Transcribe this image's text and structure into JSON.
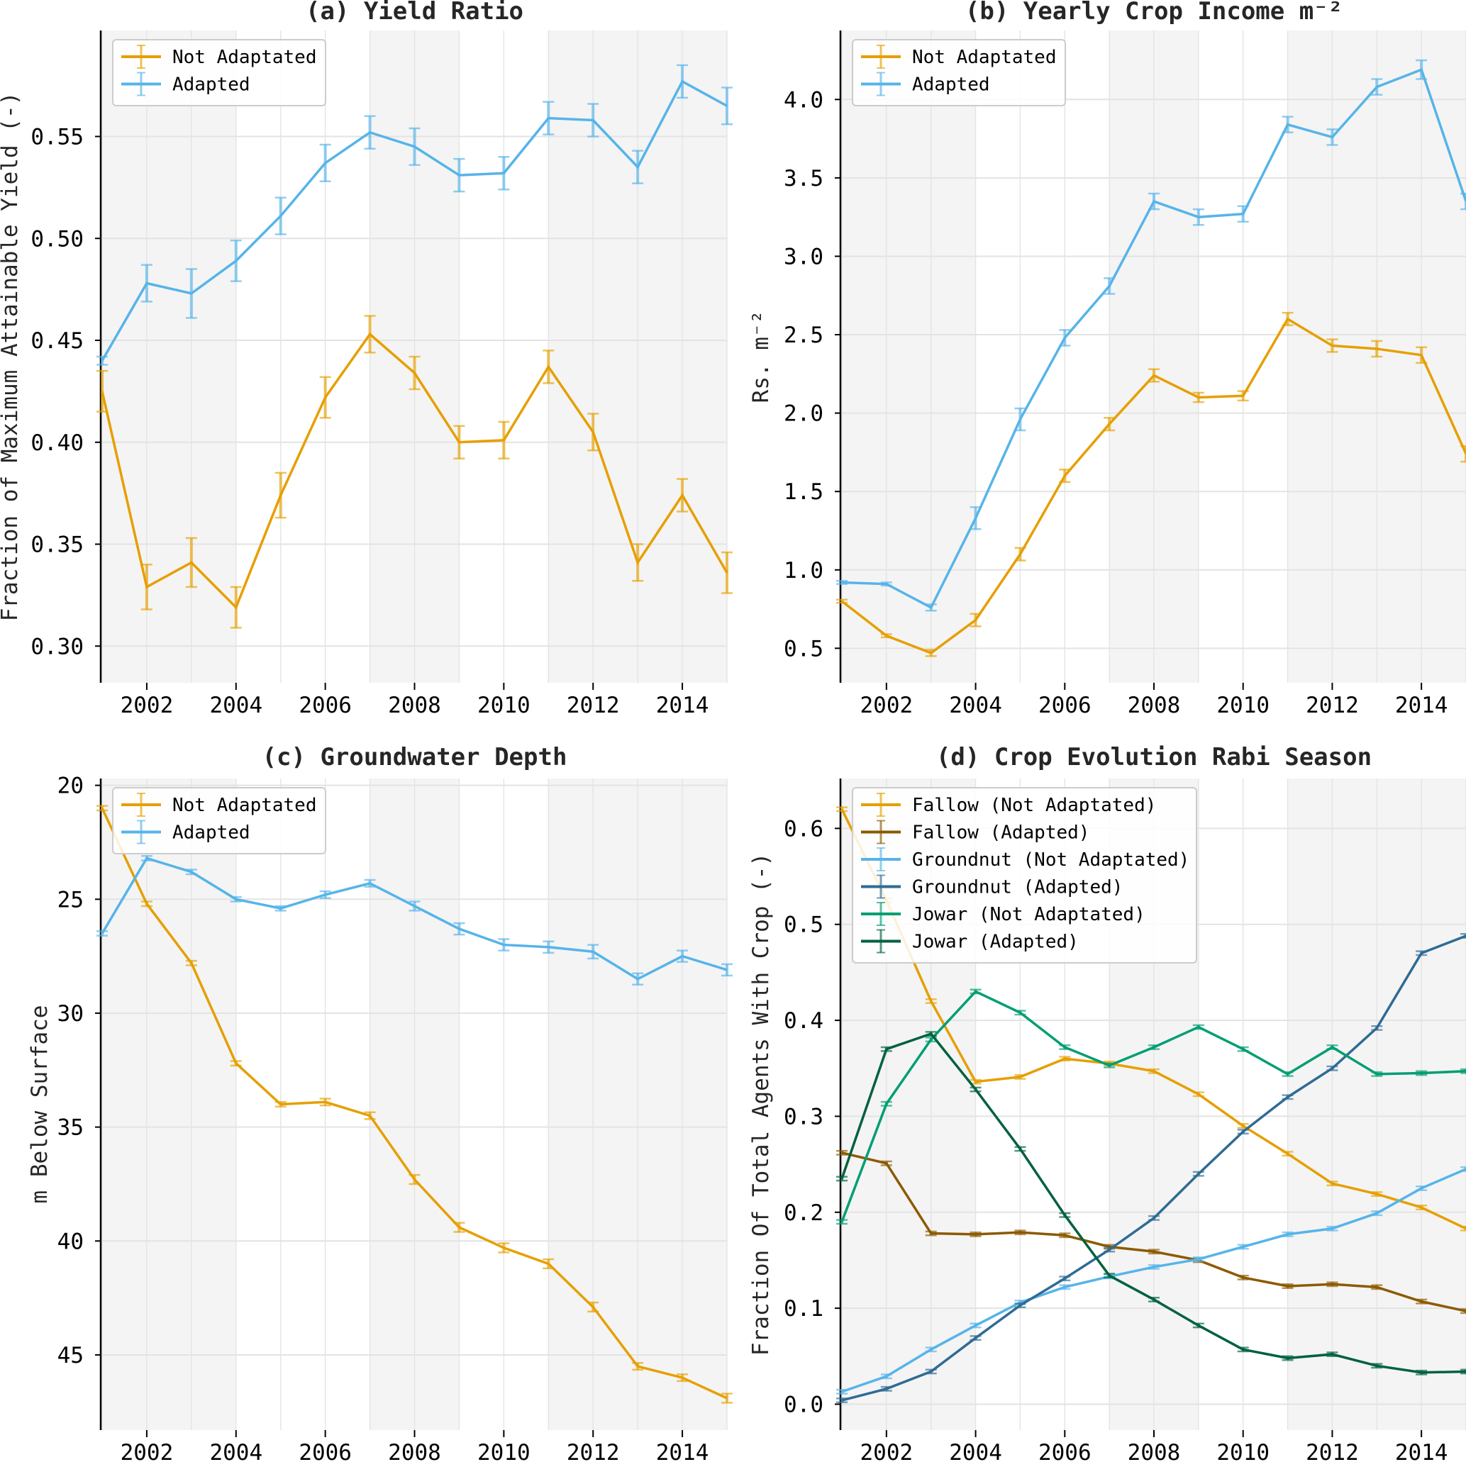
{
  "figure": {
    "shaded_periods": [
      [
        2001,
        2004
      ],
      [
        2007,
        2009
      ],
      [
        2011,
        2015
      ]
    ],
    "shade_color": "#f4f4f4",
    "grid_color": "#e3e3e3"
  },
  "chart_data": [
    {
      "id": "a",
      "type": "line",
      "title": "(a) Yield Ratio",
      "xlabel": "",
      "ylabel": "Fraction of Maximum Attainable Yield (-)",
      "x": [
        2001,
        2002,
        2003,
        2004,
        2005,
        2006,
        2007,
        2008,
        2009,
        2010,
        2011,
        2012,
        2013,
        2014,
        2015
      ],
      "xlim": [
        2001,
        2015
      ],
      "ylim": [
        0.282,
        0.602
      ],
      "xticks": [
        2002,
        2004,
        2006,
        2008,
        2010,
        2012,
        2014
      ],
      "yticks": [
        0.3,
        0.35,
        0.4,
        0.45,
        0.5,
        0.55
      ],
      "ytick_labels": [
        "0.30",
        "0.35",
        "0.40",
        "0.45",
        "0.50",
        "0.55"
      ],
      "grid": true,
      "legend_position": "top-left",
      "series": [
        {
          "name": "Not Adaptated",
          "color": "#E69F00",
          "values": [
            0.425,
            0.329,
            0.341,
            0.319,
            0.374,
            0.422,
            0.453,
            0.434,
            0.4,
            0.401,
            0.437,
            0.405,
            0.341,
            0.374,
            0.336
          ],
          "err": [
            0.01,
            0.011,
            0.012,
            0.01,
            0.011,
            0.01,
            0.009,
            0.008,
            0.008,
            0.009,
            0.008,
            0.009,
            0.009,
            0.008,
            0.01
          ]
        },
        {
          "name": "Adapted",
          "color": "#56B4E9",
          "values": [
            0.44,
            0.478,
            0.473,
            0.489,
            0.511,
            0.537,
            0.552,
            0.545,
            0.531,
            0.532,
            0.559,
            0.558,
            0.535,
            0.577,
            0.565
          ],
          "err": [
            0.002,
            0.009,
            0.012,
            0.01,
            0.009,
            0.009,
            0.008,
            0.009,
            0.008,
            0.008,
            0.008,
            0.008,
            0.008,
            0.008,
            0.009
          ]
        }
      ]
    },
    {
      "id": "b",
      "type": "line",
      "title": "(b) Yearly Crop Income m⁻²",
      "xlabel": "",
      "ylabel": "Rs. m⁻²",
      "x": [
        2001,
        2002,
        2003,
        2004,
        2005,
        2006,
        2007,
        2008,
        2009,
        2010,
        2011,
        2012,
        2013,
        2014,
        2015
      ],
      "xlim": [
        2001,
        2015
      ],
      "ylim": [
        0.28,
        4.44
      ],
      "xticks": [
        2002,
        2004,
        2006,
        2008,
        2010,
        2012,
        2014
      ],
      "yticks": [
        0.5,
        1.0,
        1.5,
        2.0,
        2.5,
        3.0,
        3.5,
        4.0
      ],
      "ytick_labels": [
        "0.5",
        "1.0",
        "1.5",
        "2.0",
        "2.5",
        "3.0",
        "3.5",
        "4.0"
      ],
      "grid": true,
      "legend_position": "top-left",
      "series": [
        {
          "name": "Not Adaptated",
          "color": "#E69F00",
          "values": [
            0.8,
            0.58,
            0.47,
            0.68,
            1.1,
            1.6,
            1.93,
            2.24,
            2.1,
            2.11,
            2.6,
            2.43,
            2.41,
            2.37,
            1.74
          ],
          "err": [
            0.01,
            0.01,
            0.02,
            0.04,
            0.04,
            0.04,
            0.04,
            0.04,
            0.03,
            0.03,
            0.04,
            0.04,
            0.05,
            0.05,
            0.05
          ]
        },
        {
          "name": "Adapted",
          "color": "#56B4E9",
          "values": [
            0.92,
            0.91,
            0.76,
            1.33,
            1.96,
            2.48,
            2.81,
            3.35,
            3.25,
            3.27,
            3.84,
            3.76,
            4.08,
            4.19,
            3.35
          ],
          "err": [
            0.01,
            0.01,
            0.02,
            0.07,
            0.07,
            0.05,
            0.05,
            0.05,
            0.05,
            0.05,
            0.05,
            0.05,
            0.05,
            0.06,
            0.05
          ]
        }
      ]
    },
    {
      "id": "c",
      "type": "line",
      "title": "(c) Groundwater Depth",
      "xlabel": "",
      "ylabel": "m Below Surface",
      "x": [
        2001,
        2002,
        2003,
        2004,
        2005,
        2006,
        2007,
        2008,
        2009,
        2010,
        2011,
        2012,
        2013,
        2014,
        2015
      ],
      "xlim": [
        2001,
        2015
      ],
      "ylim": [
        19.7,
        48.3
      ],
      "y_inverted": true,
      "xticks": [
        2002,
        2004,
        2006,
        2008,
        2010,
        2012,
        2014
      ],
      "yticks": [
        20,
        25,
        30,
        35,
        40,
        45
      ],
      "ytick_labels": [
        "20",
        "25",
        "30",
        "35",
        "40",
        "45"
      ],
      "grid": true,
      "legend_position": "top-left",
      "series": [
        {
          "name": "Not Adaptated",
          "color": "#E69F00",
          "values": [
            21.0,
            25.2,
            27.8,
            32.2,
            34.0,
            33.9,
            34.5,
            37.3,
            39.4,
            40.3,
            41.0,
            42.9,
            45.5,
            46.0,
            46.9
          ],
          "err": [
            0.1,
            0.1,
            0.1,
            0.1,
            0.1,
            0.15,
            0.15,
            0.2,
            0.2,
            0.2,
            0.2,
            0.2,
            0.15,
            0.15,
            0.2
          ]
        },
        {
          "name": "Adapted",
          "color": "#56B4E9",
          "values": [
            26.5,
            23.2,
            23.8,
            25.0,
            25.4,
            24.8,
            24.3,
            25.3,
            26.3,
            27.0,
            27.1,
            27.3,
            28.5,
            27.5,
            28.1
          ],
          "err": [
            0.1,
            0.1,
            0.1,
            0.1,
            0.1,
            0.15,
            0.15,
            0.2,
            0.25,
            0.25,
            0.25,
            0.3,
            0.25,
            0.25,
            0.25
          ]
        }
      ]
    },
    {
      "id": "d",
      "type": "line",
      "title": "(d) Crop Evolution Rabi Season",
      "xlabel": "",
      "ylabel": "Fraction Of Total Agents With Crop (-)",
      "x": [
        2001,
        2002,
        2003,
        2004,
        2005,
        2006,
        2007,
        2008,
        2009,
        2010,
        2011,
        2012,
        2013,
        2014,
        2015
      ],
      "xlim": [
        2001,
        2015
      ],
      "ylim": [
        -0.027,
        0.652
      ],
      "xticks": [
        2002,
        2004,
        2006,
        2008,
        2010,
        2012,
        2014
      ],
      "yticks": [
        0.0,
        0.1,
        0.2,
        0.3,
        0.4,
        0.5,
        0.6
      ],
      "ytick_labels": [
        "0.0",
        "0.1",
        "0.2",
        "0.3",
        "0.4",
        "0.5",
        "0.6"
      ],
      "grid": true,
      "legend_position": "top-left",
      "series": [
        {
          "name": "Fallow (Not Adaptated)",
          "color": "#E69F00",
          "values": [
            0.62,
            0.525,
            0.42,
            0.336,
            0.341,
            0.36,
            0.355,
            0.347,
            0.323,
            0.29,
            0.261,
            0.23,
            0.219,
            0.205,
            0.183
          ],
          "err": [
            0.002,
            0.002,
            0.002,
            0.002,
            0.002,
            0.002,
            0.002,
            0.002,
            0.002,
            0.002,
            0.002,
            0.002,
            0.002,
            0.002,
            0.002
          ]
        },
        {
          "name": "Fallow (Adapted)",
          "color": "#8C5A00",
          "values": [
            0.262,
            0.251,
            0.178,
            0.177,
            0.179,
            0.176,
            0.164,
            0.159,
            0.15,
            0.132,
            0.123,
            0.125,
            0.122,
            0.107,
            0.097
          ],
          "err": [
            0.002,
            0.002,
            0.002,
            0.002,
            0.002,
            0.002,
            0.002,
            0.002,
            0.002,
            0.002,
            0.002,
            0.002,
            0.002,
            0.002,
            0.002
          ]
        },
        {
          "name": "Groundnut (Not Adaptated)",
          "color": "#56B4E9",
          "values": [
            0.013,
            0.029,
            0.057,
            0.082,
            0.106,
            0.122,
            0.133,
            0.143,
            0.151,
            0.164,
            0.177,
            0.183,
            0.199,
            0.225,
            0.245
          ],
          "err": [
            0.002,
            0.002,
            0.002,
            0.002,
            0.002,
            0.002,
            0.002,
            0.002,
            0.002,
            0.002,
            0.002,
            0.002,
            0.002,
            0.002,
            0.002
          ]
        },
        {
          "name": "Groundnut (Adapted)",
          "color": "#2F6B94",
          "values": [
            0.004,
            0.016,
            0.034,
            0.069,
            0.103,
            0.131,
            0.161,
            0.194,
            0.24,
            0.284,
            0.32,
            0.35,
            0.392,
            0.47,
            0.488
          ],
          "err": [
            0.002,
            0.002,
            0.002,
            0.002,
            0.002,
            0.002,
            0.002,
            0.002,
            0.002,
            0.002,
            0.002,
            0.002,
            0.002,
            0.002,
            0.002
          ]
        },
        {
          "name": "Jowar (Not Adaptated)",
          "color": "#009E73",
          "values": [
            0.19,
            0.313,
            0.38,
            0.43,
            0.408,
            0.372,
            0.353,
            0.372,
            0.393,
            0.37,
            0.344,
            0.372,
            0.344,
            0.345,
            0.347
          ],
          "err": [
            0.002,
            0.002,
            0.002,
            0.002,
            0.002,
            0.002,
            0.002,
            0.002,
            0.002,
            0.002,
            0.002,
            0.002,
            0.002,
            0.002,
            0.002
          ]
        },
        {
          "name": "Jowar (Adapted)",
          "color": "#00613F",
          "values": [
            0.235,
            0.37,
            0.386,
            0.328,
            0.266,
            0.197,
            0.134,
            0.109,
            0.082,
            0.057,
            0.048,
            0.052,
            0.04,
            0.033,
            0.034
          ],
          "err": [
            0.002,
            0.002,
            0.002,
            0.002,
            0.002,
            0.002,
            0.002,
            0.002,
            0.002,
            0.002,
            0.002,
            0.002,
            0.002,
            0.002,
            0.002
          ]
        }
      ]
    }
  ]
}
